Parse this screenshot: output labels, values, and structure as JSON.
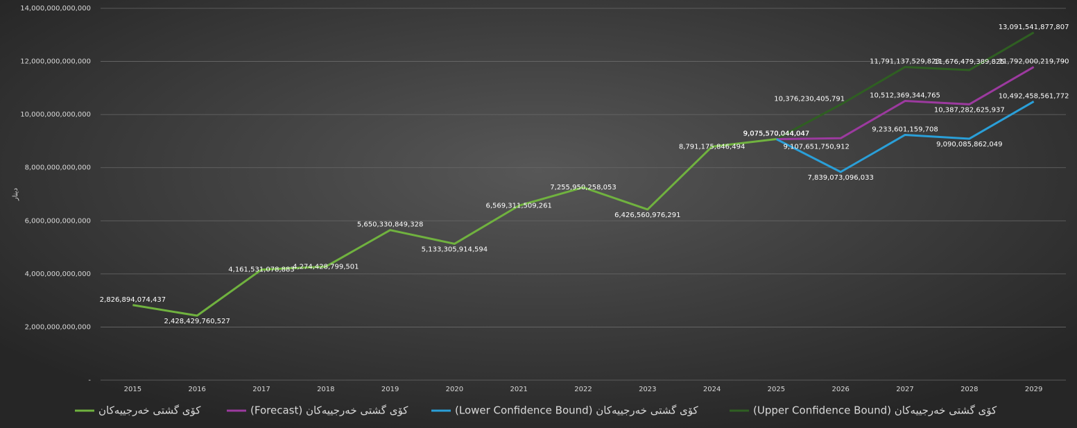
{
  "chart_data": {
    "type": "line",
    "y_label": "دینار",
    "categories": [
      "2015",
      "2016",
      "2017",
      "2018",
      "2019",
      "2020",
      "2021",
      "2022",
      "2023",
      "2024",
      "2025",
      "2026",
      "2027",
      "2028",
      "2029"
    ],
    "ylim": [
      0,
      14000000000000
    ],
    "yticks": [
      {
        "value": 0,
        "label": "-"
      },
      {
        "value": 2000000000000,
        "label": "2,000,000,000,000"
      },
      {
        "value": 4000000000000,
        "label": "4,000,000,000,000"
      },
      {
        "value": 6000000000000,
        "label": "6,000,000,000,000"
      },
      {
        "value": 8000000000000,
        "label": "8,000,000,000,000"
      },
      {
        "value": 10000000000000,
        "label": "10,000,000,000,000"
      },
      {
        "value": 12000000000000,
        "label": "12,000,000,000,000"
      },
      {
        "value": 14000000000000,
        "label": "14,000,000,000,000"
      }
    ],
    "grid": true,
    "legend": "bottom",
    "series": [
      {
        "name": "کۆی گشتی خەرجییەکان",
        "color": "#70b23f",
        "values": [
          2826894074437,
          2428429760527,
          4161531078883,
          4274428799501,
          5650330849328,
          5133305914594,
          6569311509261,
          7255950258053,
          6426560976291,
          8791175846494,
          9075570044047,
          null,
          null,
          null,
          null
        ],
        "value_labels": [
          "2,826,894,074,437",
          "2,428,429,760,527",
          "4,161,531,078,883",
          "4,274,428,799,501",
          "5,650,330,849,328",
          "5,133,305,914,594",
          "6,569,311,509,261",
          "7,255,950,258,053",
          "6,426,560,976,291",
          "8,791,175,846,494",
          "9,075,570,044,047",
          null,
          null,
          null,
          null
        ]
      },
      {
        "name": "کۆی گشتی خەرجییەکان (Forecast)",
        "color": "#9c3a9f",
        "values": [
          null,
          null,
          null,
          null,
          null,
          null,
          null,
          null,
          null,
          null,
          9075570044047,
          9107651750912,
          10512369344765,
          10387282625937,
          11792000219790
        ],
        "value_labels": [
          null,
          null,
          null,
          null,
          null,
          null,
          null,
          null,
          null,
          null,
          "9,075,570,044,047",
          "9,107,651,750,912",
          "10,512,369,344,765",
          "10,387,282,625,937",
          "11,792,000,219,790"
        ]
      },
      {
        "name": "کۆی گشتی خەرجییەکان (Lower Confidence Bound)",
        "color": "#2a9fd8",
        "values": [
          null,
          null,
          null,
          null,
          null,
          null,
          null,
          null,
          null,
          null,
          9075570044047,
          7839073096033,
          9233601159708,
          9090085862049,
          10492458561772
        ],
        "value_labels": [
          null,
          null,
          null,
          null,
          null,
          null,
          null,
          null,
          null,
          null,
          "9,075,570,044,047",
          "7,839,073,096,033",
          "9,233,601,159,708",
          "9,090,085,862,049",
          "10,492,458,561,772"
        ]
      },
      {
        "name": "کۆی گشتی خەرجییەکان (Upper Confidence Bound)",
        "color": "#2f5f22",
        "values": [
          null,
          null,
          null,
          null,
          null,
          null,
          null,
          null,
          null,
          null,
          9075570044047,
          10376230405791,
          11791137529823,
          11676479389825,
          13091541877807
        ],
        "value_labels": [
          null,
          null,
          null,
          null,
          null,
          null,
          null,
          null,
          null,
          null,
          "9,075,570,044,047",
          "10,376,230,405,791",
          "11,791,137,529,823",
          "11,676,479,389,825",
          "13,091,541,877,807"
        ]
      }
    ]
  }
}
